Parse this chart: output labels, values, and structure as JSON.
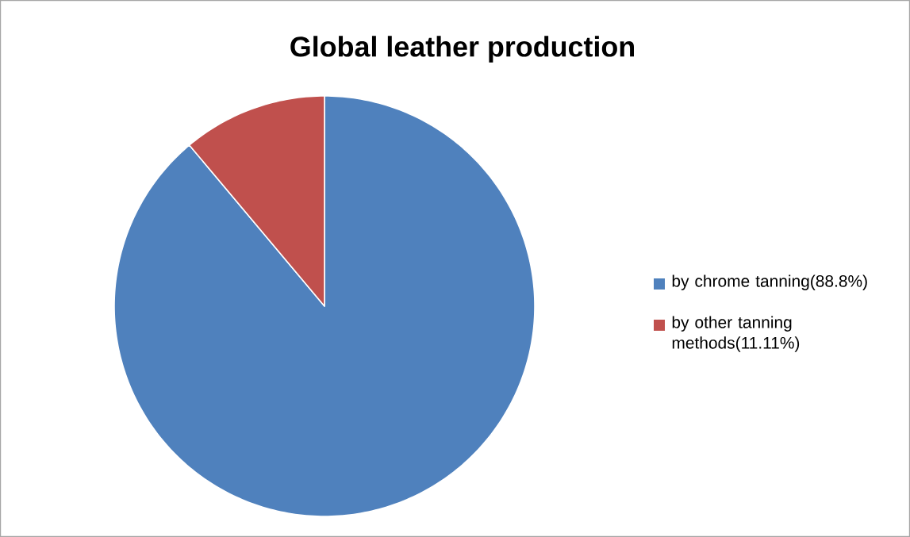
{
  "chart_data": {
    "type": "pie",
    "title": "Global leather production",
    "categories": [
      "by chrome tanning(88.8%)",
      "by other tanning methods(11.11%)"
    ],
    "values": [
      88.89,
      11.11
    ],
    "colors": [
      "#4f81bd",
      "#c0504d"
    ],
    "legend": "right"
  }
}
